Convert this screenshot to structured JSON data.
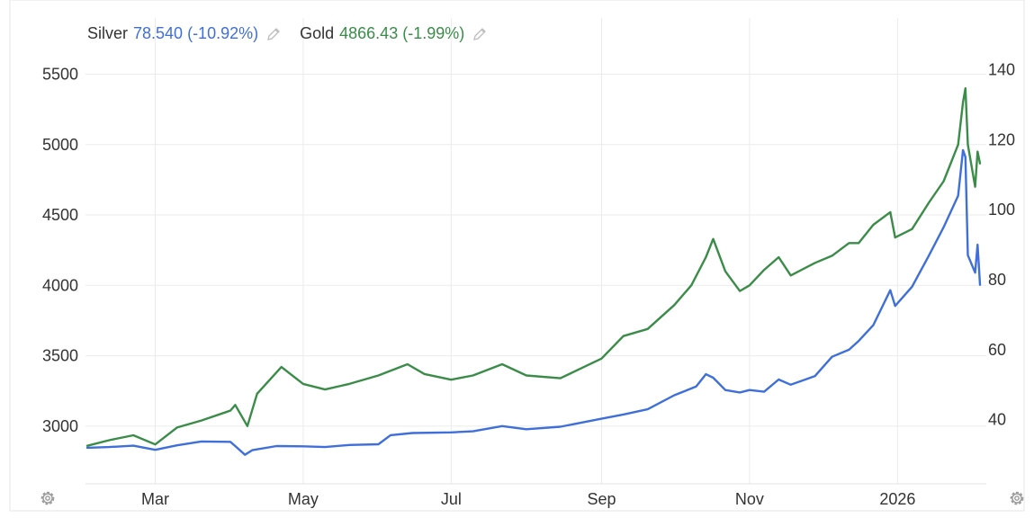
{
  "legend": {
    "silver_name": "Silver",
    "silver_value": "78.540 (-10.92%)",
    "gold_name": "Gold",
    "gold_value": "4866.43 (-1.99%)"
  },
  "icons": {
    "edit": "pencil-icon",
    "settings": "gear-icon"
  },
  "chart_data": {
    "type": "line",
    "x_tick_labels": [
      "Mar",
      "May",
      "Jul",
      "Sep",
      "Nov",
      "2026"
    ],
    "x_tick_dates": [
      "2025-03-01",
      "2025-05-01",
      "2025-07-01",
      "2025-09-01",
      "2025-11-01",
      "2026-01-01"
    ],
    "x_range": [
      "2025-02-01",
      "2026-02-04"
    ],
    "left_axis": {
      "ticks": [
        3000,
        3500,
        4000,
        4500,
        5000,
        5500
      ],
      "range": [
        2590,
        5580
      ]
    },
    "right_axis": {
      "ticks": [
        40,
        60,
        80,
        100,
        120,
        140
      ],
      "range": [
        21.7,
        141.9
      ]
    },
    "grid": true,
    "legend_position": "top-left",
    "series": [
      {
        "name": "Silver",
        "axis": "right",
        "color": "#3f6fd8",
        "x": [
          "2025-02-01",
          "2025-02-10",
          "2025-02-20",
          "2025-03-01",
          "2025-03-10",
          "2025-03-20",
          "2025-04-01",
          "2025-04-03",
          "2025-04-07",
          "2025-04-10",
          "2025-04-20",
          "2025-05-01",
          "2025-05-10",
          "2025-05-20",
          "2025-06-01",
          "2025-06-06",
          "2025-06-15",
          "2025-07-01",
          "2025-07-10",
          "2025-07-22",
          "2025-08-01",
          "2025-08-15",
          "2025-09-01",
          "2025-09-10",
          "2025-09-20",
          "2025-10-01",
          "2025-10-10",
          "2025-10-14",
          "2025-10-17",
          "2025-10-22",
          "2025-10-28",
          "2025-11-01",
          "2025-11-07",
          "2025-11-13",
          "2025-11-18",
          "2025-11-28",
          "2025-12-05",
          "2025-12-12",
          "2025-12-16",
          "2025-12-22",
          "2025-12-29",
          "2025-12-31",
          "2026-01-07",
          "2026-01-14",
          "2026-01-20",
          "2026-01-26",
          "2026-01-28",
          "2026-01-29",
          "2026-01-30",
          "2026-02-02",
          "2026-02-03",
          "2026-02-04"
        ],
        "values": [
          32.0,
          32.2,
          32.6,
          31.4,
          32.7,
          33.8,
          33.7,
          32.5,
          30.0,
          31.3,
          32.5,
          32.4,
          32.2,
          32.8,
          33.0,
          35.6,
          36.2,
          36.4,
          36.7,
          38.2,
          37.3,
          38.0,
          40.3,
          41.5,
          43.0,
          47.0,
          49.5,
          53.0,
          52.0,
          48.5,
          47.8,
          48.5,
          48.0,
          51.5,
          50.0,
          52.5,
          58.0,
          60.0,
          62.5,
          67.0,
          77.0,
          72.5,
          78.0,
          87.0,
          95.0,
          104.0,
          117.0,
          115.0,
          87.0,
          82.0,
          90.0,
          78.54
        ]
      },
      {
        "name": "Gold",
        "axis": "left",
        "color": "#3a8c48",
        "x": [
          "2025-02-01",
          "2025-02-10",
          "2025-02-20",
          "2025-03-01",
          "2025-03-10",
          "2025-03-20",
          "2025-04-01",
          "2025-04-03",
          "2025-04-08",
          "2025-04-12",
          "2025-04-22",
          "2025-05-01",
          "2025-05-10",
          "2025-05-20",
          "2025-06-01",
          "2025-06-13",
          "2025-06-20",
          "2025-07-01",
          "2025-07-10",
          "2025-07-22",
          "2025-08-01",
          "2025-08-15",
          "2025-09-01",
          "2025-09-10",
          "2025-09-20",
          "2025-10-01",
          "2025-10-08",
          "2025-10-14",
          "2025-10-17",
          "2025-10-22",
          "2025-10-28",
          "2025-11-01",
          "2025-11-07",
          "2025-11-13",
          "2025-11-18",
          "2025-11-28",
          "2025-12-05",
          "2025-12-12",
          "2025-12-16",
          "2025-12-22",
          "2025-12-29",
          "2025-12-31",
          "2026-01-07",
          "2026-01-14",
          "2026-01-20",
          "2026-01-26",
          "2026-01-28",
          "2026-01-29",
          "2026-01-30",
          "2026-02-02",
          "2026-02-03",
          "2026-02-04"
        ],
        "values": [
          2860,
          2900,
          2935,
          2870,
          2990,
          3040,
          3110,
          3150,
          3000,
          3230,
          3420,
          3300,
          3260,
          3300,
          3360,
          3440,
          3370,
          3330,
          3360,
          3440,
          3360,
          3340,
          3480,
          3640,
          3690,
          3860,
          4000,
          4200,
          4330,
          4100,
          3960,
          4000,
          4110,
          4200,
          4070,
          4160,
          4210,
          4300,
          4300,
          4430,
          4520,
          4340,
          4400,
          4590,
          4740,
          5000,
          5300,
          5400,
          5000,
          4700,
          4950,
          4866.43
        ]
      }
    ]
  }
}
